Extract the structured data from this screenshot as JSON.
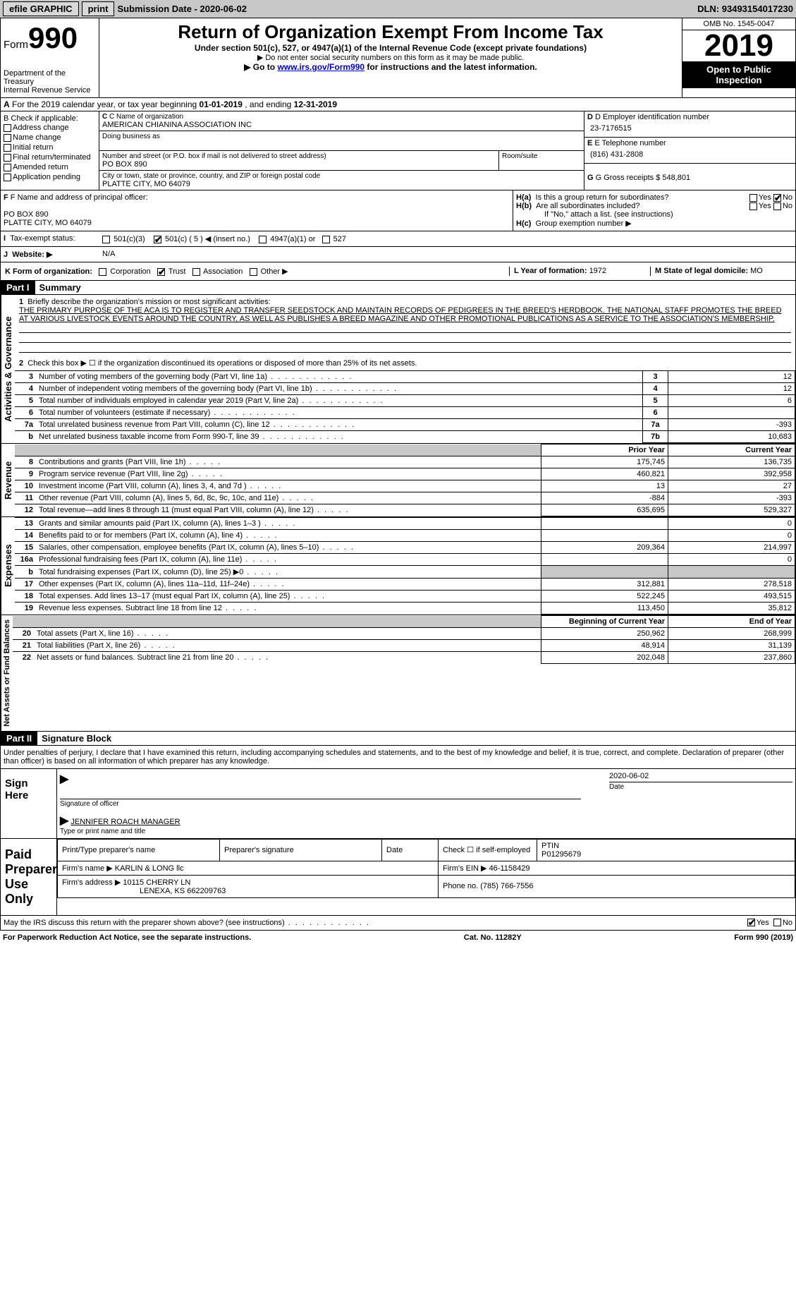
{
  "topbar": {
    "efile": "efile GRAPHIC",
    "print": "print",
    "submission_label": "Submission Date - ",
    "submission_date": "2020-06-02",
    "dln_label": "DLN: ",
    "dln": "93493154017230"
  },
  "header": {
    "form_word": "Form",
    "form_num": "990",
    "dept1": "Department of the Treasury",
    "dept2": "Internal Revenue Service",
    "title": "Return of Organization Exempt From Income Tax",
    "sub1": "Under section 501(c), 527, or 4947(a)(1) of the Internal Revenue Code (except private foundations)",
    "sub2": "▶ Do not enter social security numbers on this form as it may be made public.",
    "sub3_pre": "▶ Go to ",
    "sub3_link": "www.irs.gov/Form990",
    "sub3_post": " for instructions and the latest information.",
    "omb": "OMB No. 1545-0047",
    "year": "2019",
    "inspection": "Open to Public Inspection"
  },
  "row_a": {
    "label": "A",
    "text_pre": "For the 2019 calendar year, or tax year beginning ",
    "begin": "01-01-2019",
    "mid": "   , and ending ",
    "end": "12-31-2019"
  },
  "section_b": {
    "b_label": "B Check if applicable:",
    "addr_change": "Address change",
    "name_change": "Name change",
    "initial": "Initial return",
    "final": "Final return/terminated",
    "amended": "Amended return",
    "app_pending": "Application pending",
    "c_label": "C Name of organization",
    "c_name": "AMERICAN CHIANINA ASSOCIATION INC",
    "dba_label": "Doing business as",
    "addr_label": "Number and street (or P.O. box if mail is not delivered to street address)",
    "addr": "PO BOX 890",
    "room_label": "Room/suite",
    "city_label": "City or town, state or province, country, and ZIP or foreign postal code",
    "city": "PLATTE CITY, MO  64079",
    "d_label": "D Employer identification number",
    "d_ein": "23-7176515",
    "e_label": "E Telephone number",
    "e_phone": "(816) 431-2808",
    "g_label": "G Gross receipts $ ",
    "g_val": "548,801"
  },
  "section_f": {
    "f_label": "F Name and address of principal officer:",
    "f_addr1": "PO BOX 890",
    "f_addr2": "PLATTE CITY, MO  64079",
    "ha_label": "H(a)",
    "ha_text": "Is this a group return for subordinates?",
    "hb_label": "H(b)",
    "hb_text": "Are all subordinates included?",
    "hb_note": "If \"No,\" attach a list. (see instructions)",
    "hc_label": "H(c)",
    "hc_text": "Group exemption number ▶",
    "yes": "Yes",
    "no": "No"
  },
  "row_tax": {
    "i_label": "I",
    "tax_label": "Tax-exempt status:",
    "opt1": "501(c)(3)",
    "opt2": "501(c) ( 5 ) ◀ (insert no.)",
    "opt3": "4947(a)(1) or",
    "opt4": "527",
    "j_label": "J",
    "website_label": "Website: ▶",
    "website": "N/A"
  },
  "row_k": {
    "k_label": "K Form of organization:",
    "corp": "Corporation",
    "trust": "Trust",
    "assoc": "Association",
    "other": "Other ▶",
    "l_label": "L Year of formation: ",
    "l_val": "1972",
    "m_label": "M State of legal domicile: ",
    "m_val": "MO"
  },
  "part1": {
    "part": "Part I",
    "title": "Summary",
    "vlabel_ag": "Activities & Governance",
    "vlabel_rev": "Revenue",
    "vlabel_exp": "Expenses",
    "vlabel_net": "Net Assets or Fund Balances",
    "q1_num": "1",
    "q1": "Briefly describe the organization's mission or most significant activities:",
    "mission": "THE PRIMARY PURPOSE OF THE ACA IS TO REGISTER AND TRANSFER SEEDSTOCK AND MAINTAIN RECORDS OF PEDIGREES IN THE BREED'S HERDBOOK. THE NATIONAL STAFF PROMOTES THE BREED AT VARIOUS LIVESTOCK EVENTS AROUND THE COUNTRY, AS WELL AS PUBLISHES A BREED MAGAZINE AND OTHER PROMOTIONAL PUBLICATIONS AS A SERVICE TO THE ASSOCIATION'S MEMBERSHIP.",
    "q2_num": "2",
    "q2": "Check this box ▶ ☐  if the organization discontinued its operations or disposed of more than 25% of its net assets.",
    "lines_ag": [
      {
        "n": "3",
        "desc": "Number of voting members of the governing body (Part VI, line 1a)",
        "box": "3",
        "val": "12"
      },
      {
        "n": "4",
        "desc": "Number of independent voting members of the governing body (Part VI, line 1b)",
        "box": "4",
        "val": "12"
      },
      {
        "n": "5",
        "desc": "Total number of individuals employed in calendar year 2019 (Part V, line 2a)",
        "box": "5",
        "val": "6"
      },
      {
        "n": "6",
        "desc": "Total number of volunteers (estimate if necessary)",
        "box": "6",
        "val": ""
      },
      {
        "n": "7a",
        "desc": "Total unrelated business revenue from Part VIII, column (C), line 12",
        "box": "7a",
        "val": "-393"
      },
      {
        "n": "b",
        "desc": "Net unrelated business taxable income from Form 990-T, line 39",
        "box": "7b",
        "val": "10,683"
      }
    ],
    "prior_year": "Prior Year",
    "current_year": "Current Year",
    "beg_year": "Beginning of Current Year",
    "end_year": "End of Year",
    "lines_rev": [
      {
        "n": "8",
        "desc": "Contributions and grants (Part VIII, line 1h)",
        "py": "175,745",
        "cy": "136,735"
      },
      {
        "n": "9",
        "desc": "Program service revenue (Part VIII, line 2g)",
        "py": "460,821",
        "cy": "392,958"
      },
      {
        "n": "10",
        "desc": "Investment income (Part VIII, column (A), lines 3, 4, and 7d )",
        "py": "13",
        "cy": "27"
      },
      {
        "n": "11",
        "desc": "Other revenue (Part VIII, column (A), lines 5, 6d, 8c, 9c, 10c, and 11e)",
        "py": "-884",
        "cy": "-393"
      },
      {
        "n": "12",
        "desc": "Total revenue—add lines 8 through 11 (must equal Part VIII, column (A), line 12)",
        "py": "635,695",
        "cy": "529,327"
      }
    ],
    "lines_exp": [
      {
        "n": "13",
        "desc": "Grants and similar amounts paid (Part IX, column (A), lines 1–3 )",
        "py": "",
        "cy": "0"
      },
      {
        "n": "14",
        "desc": "Benefits paid to or for members (Part IX, column (A), line 4)",
        "py": "",
        "cy": "0"
      },
      {
        "n": "15",
        "desc": "Salaries, other compensation, employee benefits (Part IX, column (A), lines 5–10)",
        "py": "209,364",
        "cy": "214,997"
      },
      {
        "n": "16a",
        "desc": "Professional fundraising fees (Part IX, column (A), line 11e)",
        "py": "",
        "cy": "0"
      },
      {
        "n": "b",
        "desc": "Total fundraising expenses (Part IX, column (D), line 25) ▶0",
        "py": "grey",
        "cy": "grey"
      },
      {
        "n": "17",
        "desc": "Other expenses (Part IX, column (A), lines 11a–11d, 11f–24e)",
        "py": "312,881",
        "cy": "278,518"
      },
      {
        "n": "18",
        "desc": "Total expenses. Add lines 13–17 (must equal Part IX, column (A), line 25)",
        "py": "522,245",
        "cy": "493,515"
      },
      {
        "n": "19",
        "desc": "Revenue less expenses. Subtract line 18 from line 12",
        "py": "113,450",
        "cy": "35,812"
      }
    ],
    "lines_net": [
      {
        "n": "20",
        "desc": "Total assets (Part X, line 16)",
        "py": "250,962",
        "cy": "268,999"
      },
      {
        "n": "21",
        "desc": "Total liabilities (Part X, line 26)",
        "py": "48,914",
        "cy": "31,139"
      },
      {
        "n": "22",
        "desc": "Net assets or fund balances. Subtract line 21 from line 20",
        "py": "202,048",
        "cy": "237,860"
      }
    ]
  },
  "part2": {
    "part": "Part II",
    "title": "Signature Block",
    "perjury": "Under penalties of perjury, I declare that I have examined this return, including accompanying schedules and statements, and to the best of my knowledge and belief, it is true, correct, and complete. Declaration of preparer (other than officer) is based on all information of which preparer has any knowledge.",
    "sign_here": "Sign Here",
    "sig_officer": "Signature of officer",
    "date_label": "Date",
    "date_val": "2020-06-02",
    "name_title_val": "JENNIFER ROACH  MANAGER",
    "name_title_label": "Type or print name and title",
    "paid": "Paid Preparer Use Only",
    "prep_name_label": "Print/Type preparer's name",
    "prep_sig_label": "Preparer's signature",
    "check_label": "Check ☐ if self-employed",
    "ptin_label": "PTIN",
    "ptin": "P01295679",
    "firm_name_label": "Firm's name      ▶ ",
    "firm_name": "KARLIN & LONG llc",
    "firm_ein_label": "Firm's EIN ▶ ",
    "firm_ein": "46-1158429",
    "firm_addr_label": "Firm's address ▶ ",
    "firm_addr1": "10115 CHERRY LN",
    "firm_addr2": "LENEXA, KS  662209763",
    "phone_label": "Phone no. ",
    "phone": "(785) 766-7556",
    "discuss": "May the IRS discuss this return with the preparer shown above? (see instructions)"
  },
  "footer": {
    "left": "For Paperwork Reduction Act Notice, see the separate instructions.",
    "mid": "Cat. No. 11282Y",
    "right": "Form 990 (2019)"
  }
}
